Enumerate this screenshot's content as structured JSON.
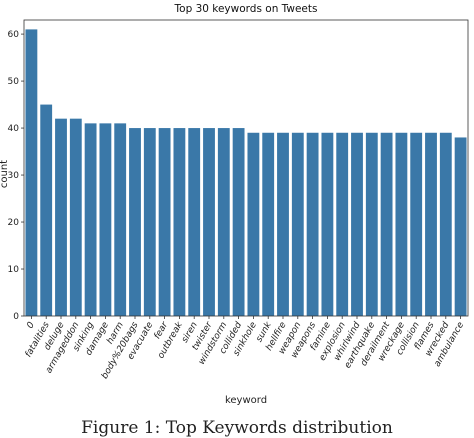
{
  "figure_caption": "Figure 1: Top Keywords distribution",
  "chart_data": {
    "type": "bar",
    "title": "Top 30 keywords on Tweets",
    "xlabel": "keyword",
    "ylabel": "count",
    "ylim": [
      0,
      63
    ],
    "yticks": [
      0,
      10,
      20,
      30,
      40,
      50,
      60
    ],
    "bar_color": "#3a78a8",
    "categories": [
      "0",
      "fatalities",
      "deluge",
      "armageddon",
      "sinking",
      "damage",
      "harm",
      "body%20bags",
      "evacuate",
      "fear",
      "outbreak",
      "siren",
      "twister",
      "windstorm",
      "collided",
      "sinkhole",
      "sunk",
      "hellfire",
      "weapon",
      "weapons",
      "famine",
      "explosion",
      "whirlwind",
      "earthquake",
      "derailment",
      "wreckage",
      "collision",
      "flames",
      "wrecked",
      "ambulance"
    ],
    "values": [
      61,
      45,
      42,
      42,
      41,
      41,
      41,
      40,
      40,
      40,
      40,
      40,
      40,
      40,
      40,
      39,
      39,
      39,
      39,
      39,
      39,
      39,
      39,
      39,
      39,
      39,
      39,
      39,
      39,
      38
    ]
  }
}
